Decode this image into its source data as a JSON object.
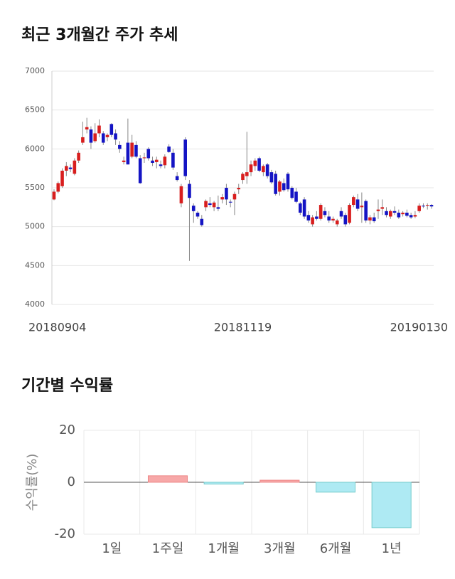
{
  "stock_chart": {
    "type": "candlestick",
    "title": "최근 3개월간 주가 추세",
    "up_color": "#d81e1e",
    "down_color": "#1414c4",
    "ylim": [
      4000,
      7000
    ],
    "yticks": [
      4000,
      4500,
      5000,
      5500,
      6000,
      6500,
      7000
    ],
    "grid": true,
    "categories": [
      "20180904",
      null,
      null,
      null,
      null,
      null,
      null,
      null,
      null,
      null,
      null,
      null,
      null,
      null,
      null,
      null,
      null,
      null,
      null,
      null,
      null,
      null,
      null,
      null,
      null,
      null,
      null,
      null,
      null,
      null,
      null,
      null,
      null,
      null,
      null,
      null,
      null,
      null,
      null,
      null,
      null,
      null,
      null,
      null,
      null,
      null,
      "20181119",
      null,
      null,
      null,
      null,
      null,
      null,
      null,
      null,
      null,
      null,
      null,
      null,
      null,
      null,
      null,
      null,
      null,
      null,
      null,
      null,
      null,
      null,
      null,
      null,
      null,
      null,
      null,
      null,
      null,
      null,
      null,
      null,
      null,
      null,
      null,
      null,
      null,
      null,
      null,
      null,
      null,
      null,
      null,
      null,
      null,
      "20190130"
    ],
    "ohlc": [
      [
        5350,
        5480,
        5340,
        5450
      ],
      [
        5450,
        5580,
        5430,
        5560
      ],
      [
        5520,
        5750,
        5500,
        5720
      ],
      [
        5720,
        5830,
        5650,
        5780
      ],
      [
        5760,
        5800,
        5700,
        5740
      ],
      [
        5680,
        5880,
        5660,
        5850
      ],
      [
        5850,
        5980,
        5820,
        5950
      ],
      [
        6080,
        6350,
        6050,
        6150
      ],
      [
        6250,
        6400,
        6200,
        6280
      ],
      [
        6250,
        6290,
        6000,
        6080
      ],
      [
        6100,
        6330,
        6080,
        6200
      ],
      [
        6200,
        6380,
        6150,
        6300
      ],
      [
        6200,
        6230,
        6050,
        6080
      ],
      [
        6150,
        6200,
        6100,
        6180
      ],
      [
        6320,
        6330,
        6150,
        6180
      ],
      [
        6200,
        6250,
        6050,
        6120
      ],
      [
        6050,
        6100,
        5950,
        6000
      ],
      [
        5830,
        5900,
        5800,
        5850
      ],
      [
        6080,
        6390,
        5800,
        5800
      ],
      [
        5900,
        6180,
        5880,
        6080
      ],
      [
        6050,
        6100,
        5880,
        5900
      ],
      [
        5880,
        5920,
        5550,
        5560
      ],
      [
        5880,
        5950,
        5820,
        5890
      ],
      [
        6000,
        6020,
        5850,
        5880
      ],
      [
        5850,
        5900,
        5780,
        5820
      ],
      [
        5830,
        5900,
        5750,
        5860
      ],
      [
        5800,
        5850,
        5750,
        5780
      ],
      [
        5790,
        5930,
        5750,
        5900
      ],
      [
        6030,
        6060,
        5950,
        5960
      ],
      [
        5950,
        6000,
        5730,
        5760
      ],
      [
        5650,
        5700,
        5580,
        5600
      ],
      [
        5300,
        5550,
        5250,
        5520
      ],
      [
        6120,
        6150,
        5600,
        5650
      ],
      [
        5550,
        5600,
        4560,
        5370
      ],
      [
        5270,
        5300,
        5050,
        5200
      ],
      [
        5180,
        5200,
        5100,
        5130
      ],
      [
        5100,
        5150,
        5000,
        5020
      ],
      [
        5250,
        5350,
        5200,
        5330
      ],
      [
        5300,
        5380,
        5250,
        5280
      ],
      [
        5250,
        5330,
        5200,
        5310
      ],
      [
        5250,
        5400,
        5200,
        5230
      ],
      [
        5350,
        5420,
        5300,
        5380
      ],
      [
        5500,
        5550,
        5280,
        5350
      ],
      [
        5320,
        5350,
        5250,
        5310
      ],
      [
        5350,
        5450,
        5150,
        5420
      ],
      [
        5480,
        5550,
        5420,
        5500
      ],
      [
        5600,
        5700,
        5550,
        5680
      ],
      [
        5650,
        6220,
        5550,
        5700
      ],
      [
        5700,
        5850,
        5650,
        5800
      ],
      [
        5780,
        5880,
        5720,
        5850
      ],
      [
        5880,
        5900,
        5700,
        5720
      ],
      [
        5700,
        5800,
        5650,
        5780
      ],
      [
        5800,
        5820,
        5620,
        5650
      ],
      [
        5700,
        5730,
        5550,
        5570
      ],
      [
        5680,
        5720,
        5400,
        5420
      ],
      [
        5450,
        5600,
        5400,
        5580
      ],
      [
        5560,
        5620,
        5450,
        5470
      ],
      [
        5680,
        5700,
        5450,
        5480
      ],
      [
        5500,
        5520,
        5350,
        5370
      ],
      [
        5450,
        5500,
        5300,
        5320
      ],
      [
        5300,
        5320,
        5150,
        5180
      ],
      [
        5350,
        5380,
        5100,
        5130
      ],
      [
        5150,
        5200,
        5050,
        5080
      ],
      [
        5030,
        5150,
        5000,
        5120
      ],
      [
        5130,
        5200,
        5080,
        5100
      ],
      [
        5100,
        5300,
        5080,
        5280
      ],
      [
        5200,
        5250,
        5120,
        5150
      ],
      [
        5130,
        5200,
        5050,
        5080
      ],
      [
        5080,
        5130,
        5050,
        5100
      ],
      [
        5030,
        5100,
        5000,
        5080
      ],
      [
        5200,
        5250,
        5100,
        5130
      ],
      [
        5150,
        5180,
        5000,
        5030
      ],
      [
        5050,
        5300,
        5030,
        5280
      ],
      [
        5280,
        5400,
        5250,
        5380
      ],
      [
        5350,
        5420,
        5200,
        5230
      ],
      [
        5250,
        5440,
        5050,
        5270
      ],
      [
        5330,
        5350,
        5050,
        5080
      ],
      [
        5080,
        5150,
        5030,
        5120
      ],
      [
        5120,
        5180,
        5050,
        5070
      ],
      [
        5200,
        5350,
        5100,
        5220
      ],
      [
        5230,
        5350,
        5150,
        5250
      ],
      [
        5200,
        5250,
        5120,
        5150
      ],
      [
        5130,
        5220,
        5100,
        5200
      ],
      [
        5200,
        5260,
        5150,
        5180
      ],
      [
        5180,
        5220,
        5100,
        5120
      ],
      [
        5160,
        5200,
        5130,
        5180
      ],
      [
        5180,
        5220,
        5120,
        5140
      ],
      [
        5150,
        5180,
        5100,
        5120
      ],
      [
        5130,
        5200,
        5110,
        5150
      ],
      [
        5200,
        5300,
        5180,
        5270
      ],
      [
        5270,
        5300,
        5240,
        5260
      ],
      [
        5270,
        5300,
        5220,
        5280
      ],
      [
        5280,
        5290,
        5230,
        5260
      ]
    ]
  },
  "chart_data": {
    "type": "bar",
    "title": "기간별 수익률",
    "y_label": "수익률(%)",
    "categories": [
      "1일",
      "1주일",
      "1개월",
      "3개월",
      "6개월",
      "1년"
    ],
    "values": [
      0,
      2.5,
      -0.7,
      0.8,
      -3.8,
      -17.5
    ],
    "positive_color": "#f7a8a8",
    "negative_color": "#aeeaf3",
    "ylim": [
      -20,
      20
    ],
    "yticks": [
      -20,
      0,
      20
    ],
    "grid": true
  }
}
